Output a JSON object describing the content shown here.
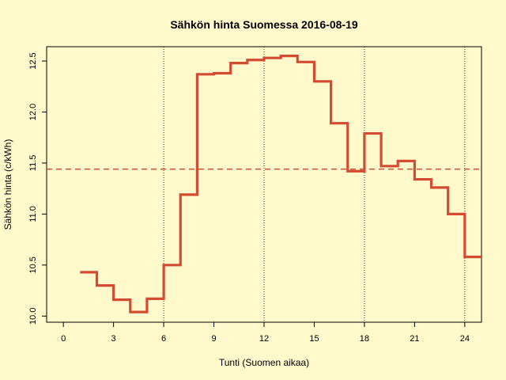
{
  "chart_data": {
    "type": "line",
    "style": "step",
    "title": "Sähkön hinta Suomessa 2016-08-19",
    "xlabel": "Tunti (Suomen aikaa)",
    "ylabel": "Sähkön hinta (c/kWh)",
    "xlim": [
      -1,
      25
    ],
    "ylim": [
      9.94,
      12.64
    ],
    "xticks": [
      0,
      3,
      6,
      9,
      12,
      15,
      18,
      21,
      24
    ],
    "yticks": [
      10.0,
      10.5,
      11.0,
      11.5,
      12.0,
      12.5
    ],
    "ytick_labels": [
      "10.0",
      "10.5",
      "11.0",
      "11.5",
      "12.0",
      "12.5"
    ],
    "vlines": [
      6,
      12,
      18,
      24
    ],
    "series": [
      {
        "color": "#d24b32",
        "x": [
          1,
          2,
          3,
          4,
          5,
          6,
          7,
          8,
          9,
          10,
          11,
          12,
          13,
          14,
          15,
          16,
          17,
          18,
          19,
          20,
          21,
          22,
          23,
          24
        ],
        "values": [
          10.43,
          10.3,
          10.16,
          10.04,
          10.17,
          10.5,
          11.19,
          12.37,
          12.38,
          12.48,
          12.51,
          12.53,
          12.55,
          12.49,
          12.3,
          11.89,
          11.42,
          11.79,
          11.47,
          11.52,
          11.34,
          11.26,
          11.0,
          10.58
        ]
      }
    ],
    "mean_line": {
      "value": 11.44,
      "color": "#d24b32",
      "style": "dashed"
    },
    "grid": false
  }
}
